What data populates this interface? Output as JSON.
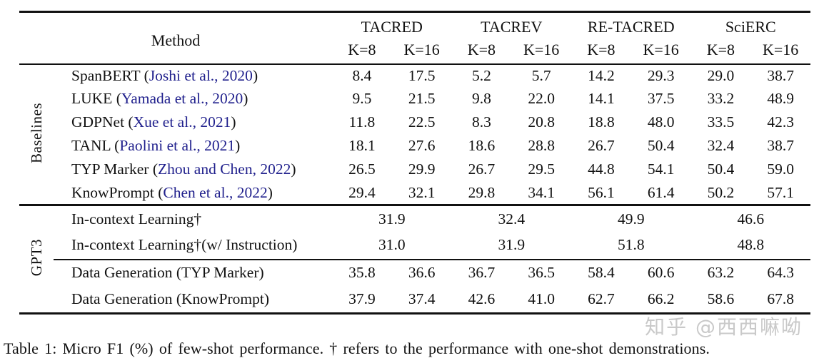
{
  "table": {
    "header": {
      "method": "Method",
      "groups": [
        "TACRED",
        "TACREV",
        "RE-TACRED",
        "SciERC"
      ],
      "k8": "K=8",
      "k16": "K=16"
    },
    "sections": {
      "baselines": {
        "label": "Baselines",
        "rows": [
          {
            "pre": "SpanBERT (",
            "cite": "Joshi et al., 2020",
            "post": ")",
            "values": [
              "8.4",
              "17.5",
              "5.2",
              "5.7",
              "14.2",
              "29.3",
              "29.0",
              "38.7"
            ]
          },
          {
            "pre": "LUKE (",
            "cite": "Yamada et al., 2020",
            "post": ")",
            "values": [
              "9.5",
              "21.5",
              "9.8",
              "22.0",
              "14.1",
              "37.5",
              "33.2",
              "48.9"
            ]
          },
          {
            "pre": "GDPNet (",
            "cite": "Xue et al., 2021",
            "post": ")",
            "values": [
              "11.8",
              "22.5",
              "8.3",
              "20.8",
              "18.8",
              "48.0",
              "33.5",
              "42.3"
            ]
          },
          {
            "pre": "TANL (",
            "cite": "Paolini et al., 2021",
            "post": ")",
            "values": [
              "18.1",
              "27.6",
              "18.6",
              "28.8",
              "26.7",
              "50.4",
              "32.4",
              "38.7"
            ]
          },
          {
            "pre": "TYP Marker (",
            "cite": "Zhou and Chen, 2022",
            "post": ")",
            "values": [
              "26.5",
              "29.9",
              "26.7",
              "29.5",
              "44.8",
              "54.1",
              "50.4",
              "59.0"
            ]
          },
          {
            "pre": "KnowPrompt (",
            "cite": "Chen et al., 2022",
            "post": ")",
            "values": [
              "29.4",
              "32.1",
              "29.8",
              "34.1",
              "56.1",
              "61.4",
              "50.2",
              "57.1"
            ]
          }
        ]
      },
      "gpt3": {
        "label": "GPT3",
        "icl_rows": [
          {
            "method": "In-context Learning†",
            "values": [
              "31.9",
              "32.4",
              "49.9",
              "46.6"
            ]
          },
          {
            "method": "In-context Learning†(w/ Instruction)",
            "values": [
              "31.0",
              "31.9",
              "51.8",
              "48.8"
            ]
          }
        ],
        "datagen_rows": [
          {
            "method": "Data Generation (TYP Marker)",
            "values": [
              "35.8",
              "36.6",
              "36.7",
              "36.5",
              "58.4",
              "60.6",
              "63.2",
              "64.3"
            ]
          },
          {
            "method": "Data Generation (KnowPrompt)",
            "values": [
              "37.9",
              "37.4",
              "42.6",
              "41.0",
              "62.7",
              "66.2",
              "58.6",
              "67.8"
            ]
          }
        ]
      }
    }
  },
  "caption": "Table 1: Micro F1 (%) of few-shot performance. † refers to the performance with one-shot demonstrations.",
  "watermark": "知乎 @西西嘛呦",
  "colors": {
    "citation": "#1f1f8c",
    "text": "#111111",
    "watermark": "#c9c9c9"
  }
}
